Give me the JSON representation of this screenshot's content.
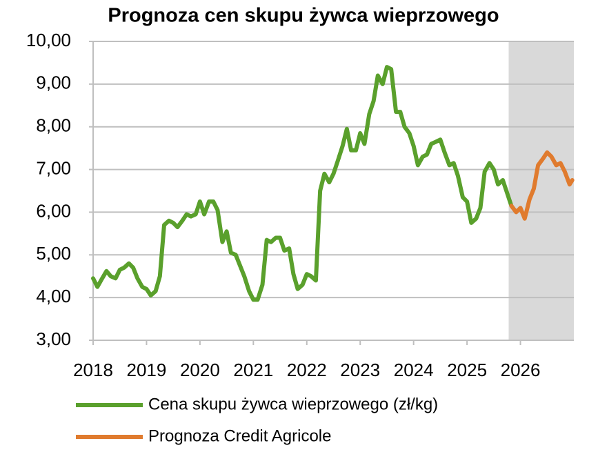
{
  "chart_data": {
    "type": "line",
    "title": "Prognoza cen skupu żywca wieprzowego",
    "xlim": [
      2018,
      2027
    ],
    "xticks": [
      2018,
      2019,
      2020,
      2021,
      2022,
      2023,
      2024,
      2025,
      2026
    ],
    "ylim": [
      3,
      10
    ],
    "yticks": [
      {
        "value": 3,
        "label": "3,00"
      },
      {
        "value": 4,
        "label": "4,00"
      },
      {
        "value": 5,
        "label": "5,00"
      },
      {
        "value": 6,
        "label": "6,00"
      },
      {
        "value": 7,
        "label": "7,00"
      },
      {
        "value": 8,
        "label": "8,00"
      },
      {
        "value": 9,
        "label": "9,00"
      },
      {
        "value": 10,
        "label": "10,00"
      }
    ],
    "grid": true,
    "shaded_region": {
      "xlim": [
        2025.78,
        2027
      ],
      "color": "#d9d9d9"
    },
    "legend": "bottom",
    "series": [
      {
        "name": "Cena skupu żywca wieprzowego (zł/kg)",
        "color": "#5aa02c",
        "x": [
          2018,
          2018.08,
          2018.17,
          2018.25,
          2018.33,
          2018.42,
          2018.5,
          2018.58,
          2018.67,
          2018.75,
          2018.83,
          2018.92,
          2019,
          2019.08,
          2019.17,
          2019.25,
          2019.33,
          2019.42,
          2019.5,
          2019.58,
          2019.67,
          2019.75,
          2019.83,
          2019.92,
          2020,
          2020.08,
          2020.17,
          2020.25,
          2020.33,
          2020.42,
          2020.5,
          2020.58,
          2020.67,
          2020.75,
          2020.83,
          2020.92,
          2021,
          2021.08,
          2021.17,
          2021.25,
          2021.33,
          2021.42,
          2021.5,
          2021.58,
          2021.67,
          2021.75,
          2021.83,
          2021.92,
          2022,
          2022.08,
          2022.17,
          2022.25,
          2022.33,
          2022.42,
          2022.5,
          2022.58,
          2022.67,
          2022.75,
          2022.83,
          2022.92,
          2023,
          2023.08,
          2023.17,
          2023.25,
          2023.33,
          2023.42,
          2023.5,
          2023.58,
          2023.67,
          2023.75,
          2023.83,
          2023.92,
          2024,
          2024.08,
          2024.17,
          2024.25,
          2024.33,
          2024.42,
          2024.5,
          2024.58,
          2024.67,
          2024.75,
          2024.83,
          2024.92,
          2025,
          2025.08,
          2025.17,
          2025.25,
          2025.33,
          2025.42,
          2025.5,
          2025.58,
          2025.67,
          2025.75,
          2025.83
        ],
        "values": [
          4.45,
          4.25,
          4.45,
          4.62,
          4.5,
          4.45,
          4.65,
          4.7,
          4.8,
          4.7,
          4.45,
          4.25,
          4.2,
          4.05,
          4.15,
          4.5,
          5.7,
          5.8,
          5.75,
          5.65,
          5.8,
          5.95,
          5.9,
          5.95,
          6.25,
          5.95,
          6.25,
          6.25,
          6.05,
          5.3,
          5.55,
          5.05,
          5.0,
          4.75,
          4.5,
          4.15,
          3.95,
          3.95,
          4.3,
          5.35,
          5.3,
          5.4,
          5.4,
          5.1,
          5.15,
          4.55,
          4.2,
          4.3,
          4.55,
          4.5,
          4.4,
          6.5,
          6.9,
          6.7,
          6.9,
          7.2,
          7.55,
          7.95,
          7.45,
          7.45,
          7.85,
          7.6,
          8.3,
          8.6,
          9.2,
          9.0,
          9.4,
          9.35,
          8.35,
          8.35,
          8.0,
          7.85,
          7.55,
          7.1,
          7.3,
          7.35,
          7.6,
          7.65,
          7.7,
          7.4,
          7.1,
          7.15,
          6.85,
          6.35,
          6.25,
          5.75,
          5.85,
          6.1,
          6.95,
          7.15,
          7.0,
          6.65,
          6.75,
          6.45,
          6.15
        ]
      },
      {
        "name": "Prognoza Credit Agricole",
        "color": "#e07b2e",
        "x": [
          2025.83,
          2025.92,
          2026,
          2026.08,
          2026.17,
          2026.25,
          2026.33,
          2026.42,
          2026.5,
          2026.58,
          2026.67,
          2026.75,
          2026.83,
          2026.92,
          2026.97
        ],
        "values": [
          6.15,
          6.0,
          6.1,
          5.85,
          6.3,
          6.55,
          7.1,
          7.25,
          7.4,
          7.3,
          7.1,
          7.15,
          6.95,
          6.65,
          6.75
        ]
      }
    ]
  }
}
